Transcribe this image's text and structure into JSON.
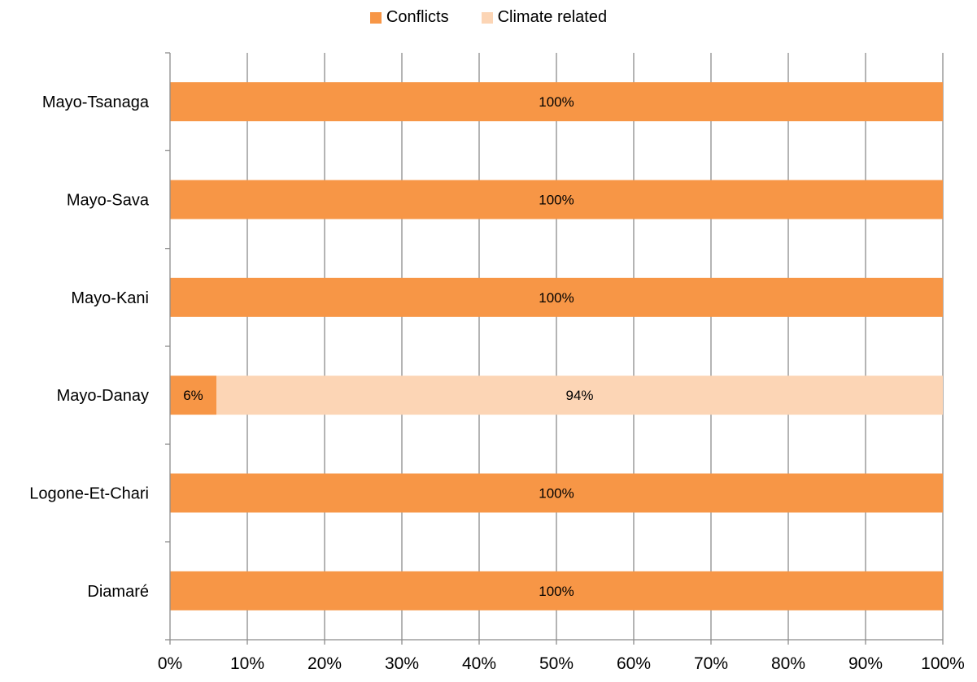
{
  "chart_data": {
    "type": "bar",
    "orientation": "horizontal",
    "stacked": true,
    "categories": [
      "Mayo-Tsanaga",
      "Mayo-Sava",
      "Mayo-Kani",
      "Mayo-Danay",
      "Logone-Et-Chari",
      "Diamaré"
    ],
    "series": [
      {
        "name": "Conflicts",
        "color": "#F79646",
        "values": [
          100,
          100,
          100,
          6,
          100,
          100
        ],
        "labels": [
          "100%",
          "100%",
          "100%",
          "6%",
          "100%",
          "100%"
        ]
      },
      {
        "name": "Climate related",
        "color": "#FCD5B5",
        "values": [
          0,
          0,
          0,
          94,
          0,
          0
        ],
        "labels": [
          "",
          "",
          "",
          "94%",
          "",
          ""
        ]
      }
    ],
    "xlim": [
      0,
      100
    ],
    "x_ticks": [
      "0%",
      "10%",
      "20%",
      "30%",
      "40%",
      "50%",
      "60%",
      "70%",
      "80%",
      "90%",
      "100%"
    ],
    "grid": true,
    "legend_position": "top"
  }
}
